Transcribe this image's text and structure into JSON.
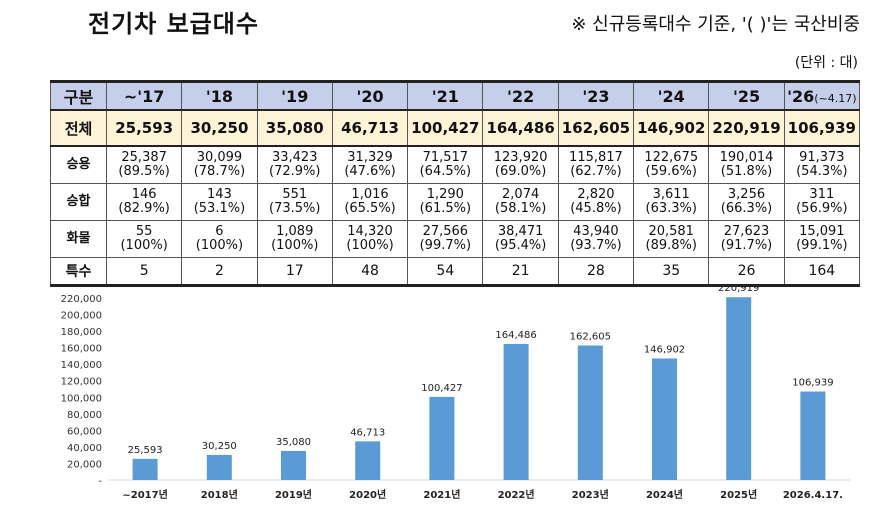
{
  "page": {
    "title": "전기차 보급대수",
    "subtitle": "※ 신규등록대수 기준, '( )'는 국산비중",
    "unit": "(단위 : 대)"
  },
  "table": {
    "header": {
      "label": "구분",
      "years": [
        "~'17",
        "'18",
        "'19",
        "'20",
        "'21",
        "'22",
        "'23",
        "'24",
        "'25",
        "'26"
      ],
      "last_suffix": "(~4.17)"
    },
    "rows": [
      {
        "label": "전체",
        "values": [
          "25,593",
          "30,250",
          "35,080",
          "46,713",
          "100,427",
          "164,486",
          "162,605",
          "146,902",
          "220,919",
          "106,939"
        ]
      },
      {
        "label": "승용",
        "values": [
          "25,387",
          "30,099",
          "33,423",
          "31,329",
          "71,517",
          "123,920",
          "115,817",
          "122,675",
          "190,014",
          "91,373"
        ],
        "pcts": [
          "(89.5%)",
          "(78.7%)",
          "(72.9%)",
          "(47.6%)",
          "(64.5%)",
          "(69.0%)",
          "(62.7%)",
          "(59.6%)",
          "(51.8%)",
          "(54.3%)"
        ]
      },
      {
        "label": "승합",
        "values": [
          "146",
          "143",
          "551",
          "1,016",
          "1,290",
          "2,074",
          "2,820",
          "3,611",
          "3,256",
          "311"
        ],
        "pcts": [
          "(82.9%)",
          "(53.1%)",
          "(73.5%)",
          "(65.5%)",
          "(61.5%)",
          "(58.1%)",
          "(45.8%)",
          "(63.3%)",
          "(66.3%)",
          "(56.9%)"
        ]
      },
      {
        "label": "화물",
        "values": [
          "55",
          "6",
          "1,089",
          "14,320",
          "27,566",
          "38,471",
          "43,940",
          "20,581",
          "27,623",
          "15,091"
        ],
        "pcts": [
          "(100%)",
          "(100%)",
          "(100%)",
          "(100%)",
          "(99.7%)",
          "(95.4%)",
          "(93.7%)",
          "(89.8%)",
          "(91.7%)",
          "(99.1%)"
        ]
      },
      {
        "label": "특수",
        "values": [
          "5",
          "2",
          "17",
          "48",
          "54",
          "21",
          "28",
          "35",
          "26",
          "164"
        ]
      }
    ]
  },
  "chart_data": {
    "type": "bar",
    "categories": [
      "~2017년",
      "2018년",
      "2019년",
      "2020년",
      "2021년",
      "2022년",
      "2023년",
      "2024년",
      "2025년",
      "2026.4.17."
    ],
    "values": [
      25593,
      30250,
      35080,
      46713,
      100427,
      164486,
      162605,
      146902,
      220919,
      106939
    ],
    "value_labels": [
      "25,593",
      "30,250",
      "35,080",
      "46,713",
      "100,427",
      "164,486",
      "162,605",
      "146,902",
      "220,919",
      "106,939"
    ],
    "y_ticks": [
      "-",
      "20,000",
      "40,000",
      "60,000",
      "80,000",
      "100,000",
      "120,000",
      "140,000",
      "160,000",
      "180,000",
      "200,000",
      "220,000"
    ],
    "ylim": [
      0,
      220000
    ],
    "bar_color": "#5b9bd5",
    "grid": false
  }
}
